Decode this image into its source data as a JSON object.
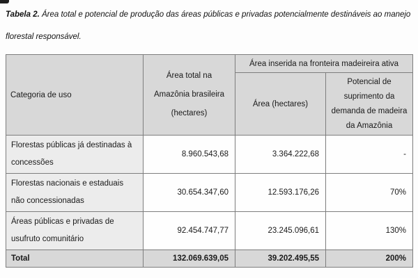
{
  "caption": {
    "label": "Tabela 2.",
    "line1": " Área total e potencial de produção das áreas públicas e privadas potencialmente destináveis ao manejo",
    "line2": "florestal responsável."
  },
  "table": {
    "header": {
      "categoria": "Categoria de uso",
      "area_total_lines": [
        "Área total na",
        "Amazônia brasileira",
        "(hectares)"
      ],
      "fronteira_group": "Área inserida na fronteira madeireira ativa",
      "area": "Área (hectares)",
      "potencial_lines": [
        "Potencial de",
        "suprimento da",
        "demanda de madeira",
        "da Amazônia"
      ]
    },
    "rows": [
      {
        "categoria": "Florestas públicas já destinadas à concessões",
        "area_total": "8.960.543,68",
        "area": "3.364.222,68",
        "potencial": "-"
      },
      {
        "categoria": "Florestas nacionais e estaduais não concessionadas",
        "area_total": "30.654.347,60",
        "area": "12.593.176,26",
        "potencial": "70%"
      },
      {
        "categoria": "Áreas públicas e privadas de usufruto comunitário",
        "area_total": "92.454.747,77",
        "area": "23.245.096,61",
        "potencial": "130%"
      }
    ],
    "total": {
      "categoria": "Total",
      "area_total": "132.069.639,05",
      "area": "39.202.495,55",
      "potencial": "200%"
    }
  },
  "colors": {
    "header_bg": "#d8d8d8",
    "row_label_bg": "#ececec",
    "total_bg": "#d8d8d8",
    "inner_border": "#7d7d7d",
    "outer_border": "#2d2d2d",
    "page_bg": "#fdfdfd"
  }
}
